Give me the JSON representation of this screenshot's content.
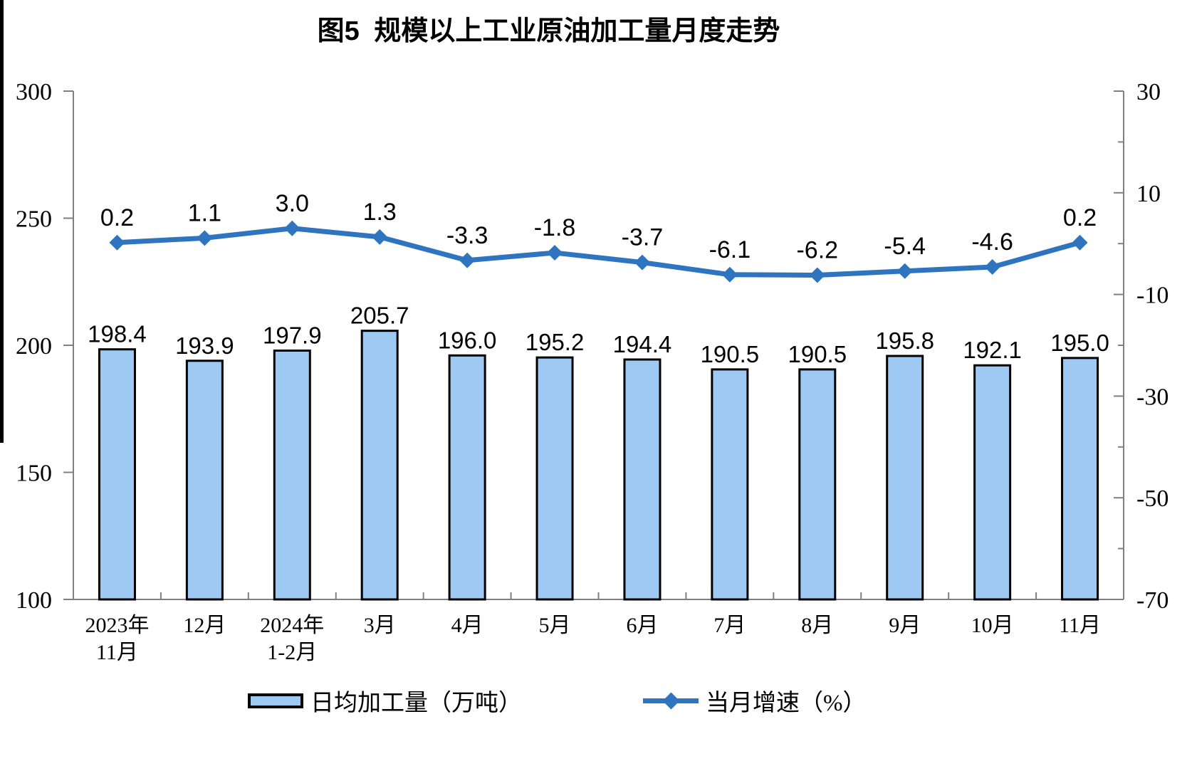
{
  "chart_data": {
    "type": "combo-bar-line",
    "title": "图5 规模以上工业原油加工量月度走势",
    "categories": [
      "2023年11月",
      "12月",
      "2024年1-2月",
      "3月",
      "4月",
      "5月",
      "6月",
      "7月",
      "8月",
      "9月",
      "10月",
      "11月"
    ],
    "category_labels": [
      [
        "2023年",
        "11月"
      ],
      [
        "12月",
        ""
      ],
      [
        "2024年",
        "1-2月"
      ],
      [
        "3月",
        ""
      ],
      [
        "4月",
        ""
      ],
      [
        "5月",
        ""
      ],
      [
        "6月",
        ""
      ],
      [
        "7月",
        ""
      ],
      [
        "8月",
        ""
      ],
      [
        "9月",
        ""
      ],
      [
        "10月",
        ""
      ],
      [
        "11月",
        ""
      ]
    ],
    "series": [
      {
        "name": "日均加工量（万吨）",
        "type": "bar",
        "axis": "left",
        "color": "#9DC9F3",
        "border_color": "#000000",
        "values": [
          198.4,
          193.9,
          197.9,
          205.7,
          196.0,
          195.2,
          194.4,
          190.5,
          190.5,
          195.8,
          192.1,
          195.0
        ]
      },
      {
        "name": "当月增速（%）",
        "type": "line",
        "axis": "right",
        "color": "#2E74BF",
        "values": [
          0.2,
          1.1,
          3.0,
          1.3,
          -3.3,
          -1.8,
          -3.7,
          -6.1,
          -6.2,
          -5.4,
          -4.6,
          0.2
        ]
      }
    ],
    "left_axis": {
      "min": 100,
      "max": 300,
      "ticks": [
        100,
        150,
        200,
        250,
        300
      ]
    },
    "right_axis": {
      "min": -70,
      "max": 30,
      "ticks": [
        -70,
        -50,
        -30,
        -10,
        10,
        30
      ],
      "minor_step": 10
    },
    "axis_color": "#808080",
    "legend_position": "bottom",
    "grid": "off"
  }
}
